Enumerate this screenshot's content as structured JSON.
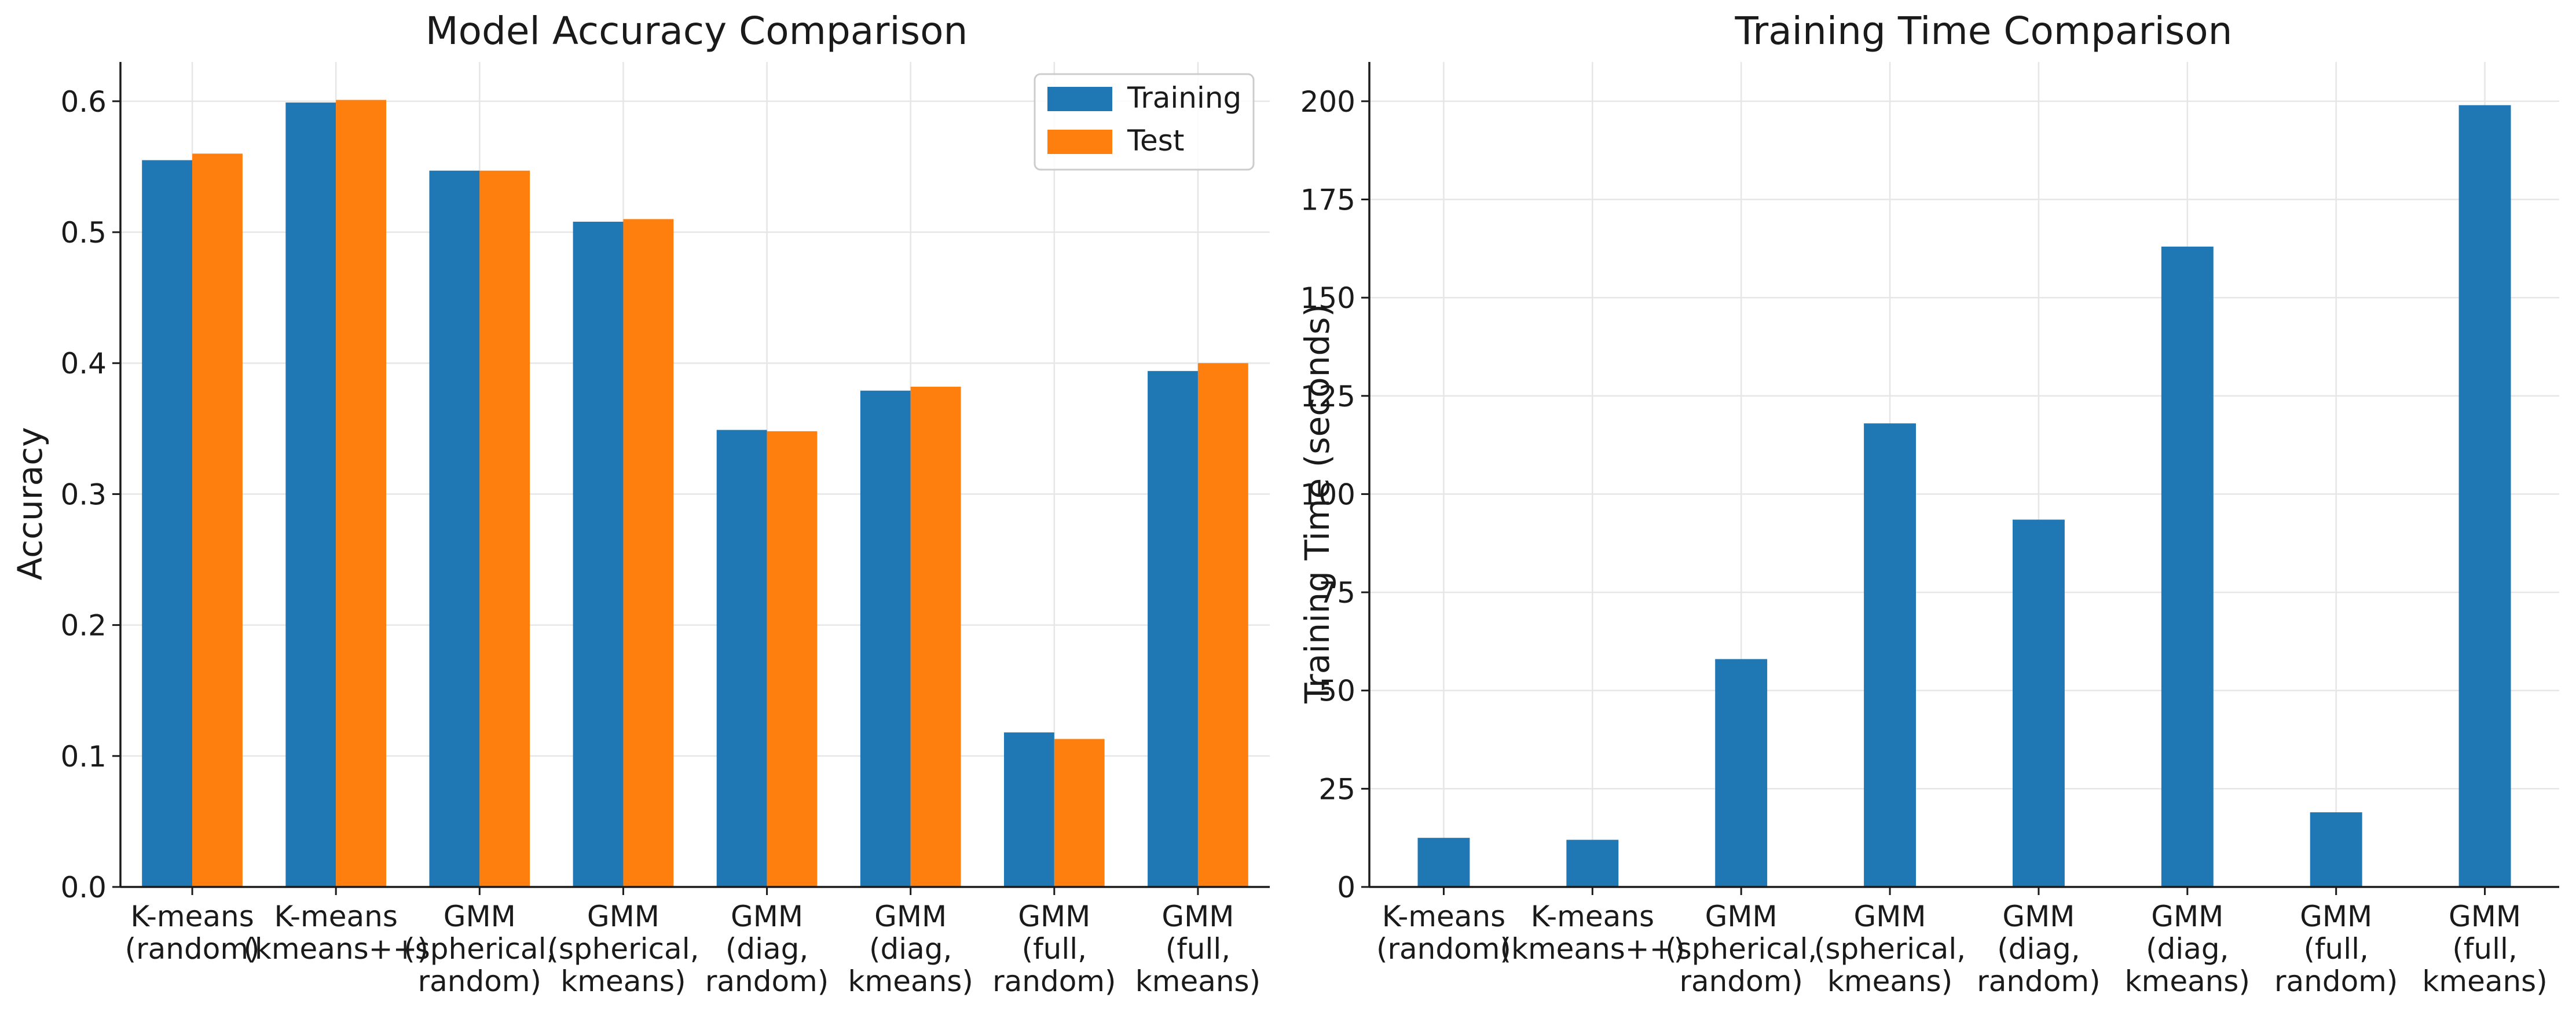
{
  "chart_data": [
    {
      "type": "bar",
      "title": "Model Accuracy Comparison",
      "xlabel": "",
      "ylabel": "Accuracy",
      "ylim": [
        0,
        0.63
      ],
      "yticks": [
        "0.0",
        "0.1",
        "0.2",
        "0.3",
        "0.4",
        "0.5",
        "0.6"
      ],
      "ytick_values": [
        0,
        0.1,
        0.2,
        0.3,
        0.4,
        0.5,
        0.6
      ],
      "grid": true,
      "legend_position": "top-right",
      "categories": [
        [
          "K-means",
          "(random)"
        ],
        [
          "K-means",
          "(kmeans++)"
        ],
        [
          "GMM",
          "(spherical,",
          "random)"
        ],
        [
          "GMM",
          "(spherical,",
          "kmeans)"
        ],
        [
          "GMM",
          "(diag,",
          "random)"
        ],
        [
          "GMM",
          "(diag,",
          "kmeans)"
        ],
        [
          "GMM",
          "(full,",
          "random)"
        ],
        [
          "GMM",
          "(full,",
          "kmeans)"
        ]
      ],
      "series": [
        {
          "name": "Training",
          "color": "#1f77b4",
          "values": [
            0.555,
            0.599,
            0.547,
            0.508,
            0.349,
            0.379,
            0.118,
            0.394
          ]
        },
        {
          "name": "Test",
          "color": "#ff7f0e",
          "values": [
            0.56,
            0.601,
            0.547,
            0.51,
            0.348,
            0.382,
            0.113,
            0.4
          ]
        }
      ]
    },
    {
      "type": "bar",
      "title": "Training Time Comparison",
      "xlabel": "",
      "ylabel": "Training Time (seconds)",
      "ylim": [
        0,
        210
      ],
      "yticks": [
        "0",
        "25",
        "50",
        "75",
        "100",
        "125",
        "150",
        "175",
        "200"
      ],
      "ytick_values": [
        0,
        25,
        50,
        75,
        100,
        125,
        150,
        175,
        200
      ],
      "grid": true,
      "categories": [
        [
          "K-means",
          "(random)"
        ],
        [
          "K-means",
          "(kmeans++)"
        ],
        [
          "GMM",
          "(spherical,",
          "random)"
        ],
        [
          "GMM",
          "(spherical,",
          "kmeans)"
        ],
        [
          "GMM",
          "(diag,",
          "random)"
        ],
        [
          "GMM",
          "(diag,",
          "kmeans)"
        ],
        [
          "GMM",
          "(full,",
          "random)"
        ],
        [
          "GMM",
          "(full,",
          "kmeans)"
        ]
      ],
      "series": [
        {
          "color": "#1f77b4",
          "values": [
            12.5,
            12.0,
            58.0,
            118.0,
            93.5,
            163.0,
            19.0,
            199.0
          ]
        }
      ]
    }
  ]
}
